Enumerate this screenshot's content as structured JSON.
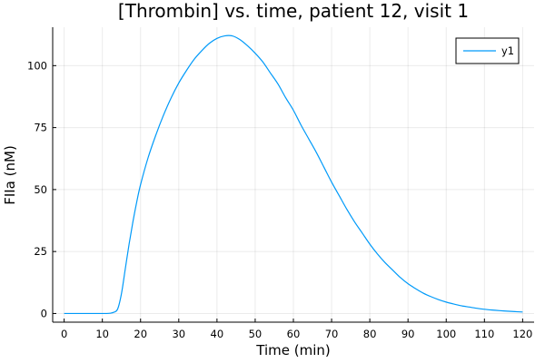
{
  "chart_data": {
    "type": "line",
    "title": "[Thrombin] vs. time, patient 12, visit 1",
    "xlabel": "Time (min)",
    "ylabel": "FIIa (nM)",
    "xlim": [
      -3,
      123
    ],
    "ylim": [
      -3.5,
      115.5
    ],
    "xticks": [
      0,
      10,
      20,
      30,
      40,
      50,
      60,
      70,
      80,
      90,
      100,
      110,
      120
    ],
    "xtick_labels": [
      "0",
      "10",
      "20",
      "30",
      "40",
      "50",
      "60",
      "70",
      "80",
      "90",
      "100",
      "110",
      "120"
    ],
    "yticks": [
      0,
      25,
      50,
      75,
      100
    ],
    "ytick_labels": [
      "0",
      "25",
      "50",
      "75",
      "100"
    ],
    "grid": true,
    "legend_position": "top-right",
    "series": [
      {
        "name": "y1",
        "color": "#009AF9",
        "x": [
          0,
          10,
          11,
          12,
          13,
          14,
          15,
          16,
          17,
          18,
          19,
          20,
          22,
          24,
          26,
          28,
          30,
          32,
          34,
          36,
          38,
          40,
          42,
          44,
          46,
          48,
          50,
          52,
          54,
          56,
          58,
          60,
          62,
          64,
          66,
          68,
          70,
          72,
          74,
          76,
          78,
          80,
          82,
          84,
          86,
          88,
          90,
          92,
          94,
          96,
          98,
          100,
          102,
          104,
          106,
          108,
          110,
          112,
          114,
          116,
          118,
          120
        ],
        "y": [
          0,
          0,
          0,
          0.1,
          0.5,
          1.8,
          8,
          18,
          28,
          37,
          45,
          52,
          63,
          72,
          80,
          87,
          93,
          98,
          102.5,
          106,
          109,
          111,
          112,
          112,
          110.5,
          108,
          105,
          101.5,
          97,
          92.5,
          87,
          82,
          76,
          70.5,
          65,
          59,
          53,
          47.5,
          42,
          37,
          32.5,
          28,
          24,
          20.5,
          17.5,
          14.5,
          12,
          10,
          8.2,
          6.8,
          5.6,
          4.6,
          3.8,
          3.1,
          2.6,
          2.1,
          1.7,
          1.4,
          1.15,
          0.95,
          0.75,
          0.6
        ]
      }
    ]
  }
}
